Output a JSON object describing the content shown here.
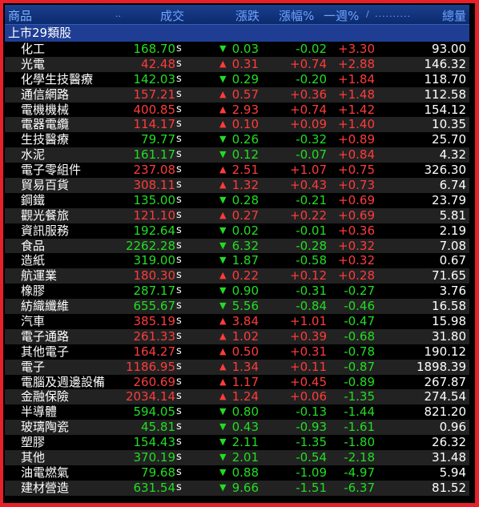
{
  "header": {
    "name": "商品",
    "sort1": "..",
    "price": "成交",
    "change": "漲跌",
    "pct": "漲幅%",
    "week": "一週%",
    "marker": "/",
    "dots": "..........",
    "volume": "總量"
  },
  "group_title": "上市29類股",
  "colors": {
    "up": "#ff3b3b",
    "down": "#22dd22",
    "header_bg": "#1a3f8c",
    "group_bg": "#1f3e93",
    "border": "#e8202a"
  },
  "rows": [
    {
      "name": "化工",
      "price": "168.70",
      "s": "s",
      "dir": "dn",
      "arrow": "▼",
      "change": "0.03",
      "pct": "-0.02",
      "week": "+3.30",
      "volume": "93.00"
    },
    {
      "name": "光電",
      "price": "42.48",
      "s": "s",
      "dir": "up",
      "arrow": "▲",
      "change": "0.31",
      "pct": "+0.74",
      "week": "+2.88",
      "volume": "146.32"
    },
    {
      "name": "化學生技醫療",
      "price": "142.03",
      "s": "s",
      "dir": "dn",
      "arrow": "▼",
      "change": "0.29",
      "pct": "-0.20",
      "week": "+1.84",
      "volume": "118.70"
    },
    {
      "name": "通信網路",
      "price": "157.21",
      "s": "s",
      "dir": "up",
      "arrow": "▲",
      "change": "0.57",
      "pct": "+0.36",
      "week": "+1.48",
      "volume": "112.58"
    },
    {
      "name": "電機機械",
      "price": "400.85",
      "s": "s",
      "dir": "up",
      "arrow": "▲",
      "change": "2.93",
      "pct": "+0.74",
      "week": "+1.42",
      "volume": "154.12"
    },
    {
      "name": "電器電纜",
      "price": "114.17",
      "s": "s",
      "dir": "up",
      "arrow": "▲",
      "change": "0.10",
      "pct": "+0.09",
      "week": "+1.40",
      "volume": "10.35"
    },
    {
      "name": "生技醫療",
      "price": "79.77",
      "s": "s",
      "dir": "dn",
      "arrow": "▼",
      "change": "0.26",
      "pct": "-0.32",
      "week": "+0.89",
      "volume": "25.70"
    },
    {
      "name": "水泥",
      "price": "161.17",
      "s": "s",
      "dir": "dn",
      "arrow": "▼",
      "change": "0.12",
      "pct": "-0.07",
      "week": "+0.84",
      "volume": "4.32"
    },
    {
      "name": "電子零組件",
      "price": "237.08",
      "s": "s",
      "dir": "up",
      "arrow": "▲",
      "change": "2.51",
      "pct": "+1.07",
      "week": "+0.75",
      "volume": "326.30"
    },
    {
      "name": "貿易百貨",
      "price": "308.11",
      "s": "s",
      "dir": "up",
      "arrow": "▲",
      "change": "1.32",
      "pct": "+0.43",
      "week": "+0.73",
      "volume": "6.74"
    },
    {
      "name": "鋼鐵",
      "price": "135.00",
      "s": "s",
      "dir": "dn",
      "arrow": "▼",
      "change": "0.28",
      "pct": "-0.21",
      "week": "+0.69",
      "volume": "23.79"
    },
    {
      "name": "觀光餐旅",
      "price": "121.10",
      "s": "s",
      "dir": "up",
      "arrow": "▲",
      "change": "0.27",
      "pct": "+0.22",
      "week": "+0.69",
      "volume": "5.81"
    },
    {
      "name": "資訊服務",
      "price": "192.64",
      "s": "s",
      "dir": "dn",
      "arrow": "▼",
      "change": "0.02",
      "pct": "-0.01",
      "week": "+0.36",
      "volume": "2.19"
    },
    {
      "name": "食品",
      "price": "2262.28",
      "s": "s",
      "dir": "dn",
      "arrow": "▼",
      "change": "6.32",
      "pct": "-0.28",
      "week": "+0.32",
      "volume": "7.08"
    },
    {
      "name": "造紙",
      "price": "319.00",
      "s": "s",
      "dir": "dn",
      "arrow": "▼",
      "change": "1.87",
      "pct": "-0.58",
      "week": "+0.32",
      "volume": "0.67"
    },
    {
      "name": "航運業",
      "price": "180.30",
      "s": "s",
      "dir": "up",
      "arrow": "▲",
      "change": "0.22",
      "pct": "+0.12",
      "week": "+0.28",
      "volume": "71.65"
    },
    {
      "name": "橡膠",
      "price": "287.17",
      "s": "s",
      "dir": "dn",
      "arrow": "▼",
      "change": "0.90",
      "pct": "-0.31",
      "week": "-0.27",
      "volume": "3.76"
    },
    {
      "name": "紡織纖維",
      "price": "655.67",
      "s": "s",
      "dir": "dn",
      "arrow": "▼",
      "change": "5.56",
      "pct": "-0.84",
      "week": "-0.46",
      "volume": "16.58"
    },
    {
      "name": "汽車",
      "price": "385.19",
      "s": "s",
      "dir": "up",
      "arrow": "▲",
      "change": "3.84",
      "pct": "+1.01",
      "week": "-0.47",
      "volume": "15.98"
    },
    {
      "name": "電子通路",
      "price": "261.33",
      "s": "s",
      "dir": "up",
      "arrow": "▲",
      "change": "1.02",
      "pct": "+0.39",
      "week": "-0.68",
      "volume": "31.80"
    },
    {
      "name": "其他電子",
      "price": "164.27",
      "s": "s",
      "dir": "up",
      "arrow": "▲",
      "change": "0.50",
      "pct": "+0.31",
      "week": "-0.78",
      "volume": "190.12"
    },
    {
      "name": "電子",
      "price": "1186.95",
      "s": "s",
      "dir": "up",
      "arrow": "▲",
      "change": "1.34",
      "pct": "+0.11",
      "week": "-0.87",
      "volume": "1898.39"
    },
    {
      "name": "電腦及週邊設備",
      "price": "260.69",
      "s": "s",
      "dir": "up",
      "arrow": "▲",
      "change": "1.17",
      "pct": "+0.45",
      "week": "-0.89",
      "volume": "267.87"
    },
    {
      "name": "金融保險",
      "price": "2034.14",
      "s": "s",
      "dir": "up",
      "arrow": "▲",
      "change": "1.24",
      "pct": "+0.06",
      "week": "-1.35",
      "volume": "274.54"
    },
    {
      "name": "半導體",
      "price": "594.05",
      "s": "s",
      "dir": "dn",
      "arrow": "▼",
      "change": "0.80",
      "pct": "-0.13",
      "week": "-1.44",
      "volume": "821.20"
    },
    {
      "name": "玻璃陶瓷",
      "price": "45.81",
      "s": "s",
      "dir": "dn",
      "arrow": "▼",
      "change": "0.43",
      "pct": "-0.93",
      "week": "-1.61",
      "volume": "0.96"
    },
    {
      "name": "塑膠",
      "price": "154.43",
      "s": "s",
      "dir": "dn",
      "arrow": "▼",
      "change": "2.11",
      "pct": "-1.35",
      "week": "-1.80",
      "volume": "26.32"
    },
    {
      "name": "其他",
      "price": "370.19",
      "s": "s",
      "dir": "dn",
      "arrow": "▼",
      "change": "2.01",
      "pct": "-0.54",
      "week": "-2.18",
      "volume": "31.48"
    },
    {
      "name": "油電燃氣",
      "price": "79.68",
      "s": "s",
      "dir": "dn",
      "arrow": "▼",
      "change": "0.88",
      "pct": "-1.09",
      "week": "-4.97",
      "volume": "5.94"
    },
    {
      "name": "建材營造",
      "price": "631.54",
      "s": "s",
      "dir": "dn",
      "arrow": "▼",
      "change": "9.66",
      "pct": "-1.51",
      "week": "-6.37",
      "volume": "81.52"
    }
  ]
}
